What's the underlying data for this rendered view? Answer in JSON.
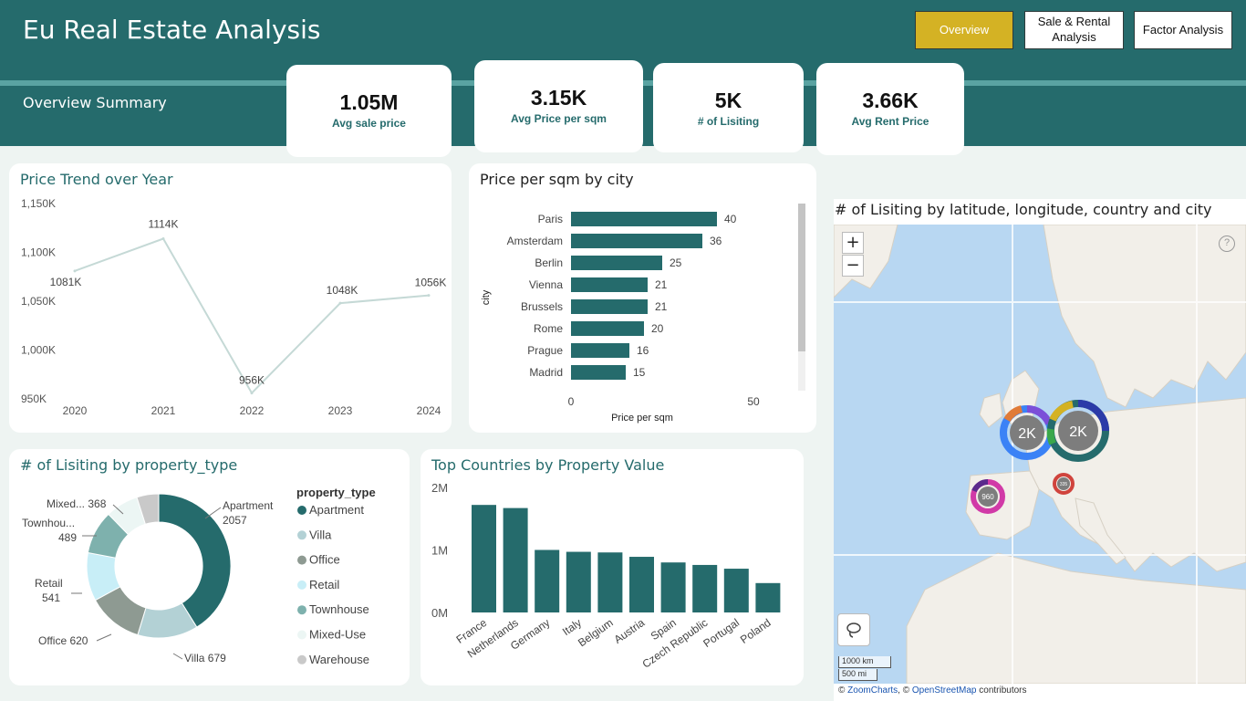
{
  "app": {
    "title": "Eu Real Estate Analysis",
    "subtitle": "Overview Summary"
  },
  "nav": {
    "overview": "Overview",
    "sale_rental_line1": "Sale & Rental",
    "sale_rental_line2": "Analysis",
    "factor": "Factor Analysis"
  },
  "kpis": [
    {
      "value": "1.05M",
      "label": "Avg sale price"
    },
    {
      "value": "3.15K",
      "label": "Avg Price per sqm"
    },
    {
      "value": "5K",
      "label": "# of Lisiting"
    },
    {
      "value": "3.66K",
      "label": "Avg Rent Price"
    }
  ],
  "colors": {
    "header": "#256b6c",
    "accent": "#d4b224",
    "bar": "#256b6c",
    "line": "#c5d9d6"
  },
  "chart_data": [
    {
      "id": "price_trend",
      "type": "line",
      "title": "Price Trend over Year",
      "x": [
        "2020",
        "2021",
        "2022",
        "2023",
        "2024"
      ],
      "values": [
        1081,
        1114,
        956,
        1048,
        1056
      ],
      "data_labels": [
        "1081K",
        "1114K",
        "956K",
        "1048K",
        "1056K"
      ],
      "y_ticks": [
        "1,150K",
        "1,100K",
        "1,050K",
        "1,000K",
        "950K"
      ],
      "ylim": [
        950,
        1150
      ]
    },
    {
      "id": "price_sqm_city",
      "type": "bar",
      "orientation": "horizontal",
      "title": "Price per sqm by city",
      "categories": [
        "Paris",
        "Amsterdam",
        "Berlin",
        "Vienna",
        "Brussels",
        "Rome",
        "Prague",
        "Madrid"
      ],
      "values": [
        40,
        36,
        25,
        21,
        21,
        20,
        16,
        15
      ],
      "xlabel": "Price per sqm",
      "ylabel": "city",
      "x_ticks": [
        "0",
        "50"
      ],
      "xlim": [
        0,
        50
      ]
    },
    {
      "id": "listing_property_type",
      "type": "pie",
      "variant": "donut",
      "title": "# of Lisiting by property_type",
      "legend_title": "property_type",
      "categories": [
        "Apartment",
        "Villa",
        "Office",
        "Retail",
        "Townhouse",
        "Mixed-Use",
        "Warehouse"
      ],
      "values": [
        2057,
        679,
        620,
        541,
        489,
        368,
        246
      ],
      "slice_labels": [
        {
          "name": "Apartment",
          "value": "2057"
        },
        {
          "name": "Villa",
          "value": "679"
        },
        {
          "name": "Office",
          "value": "620"
        },
        {
          "name": "Retail",
          "value": "541"
        },
        {
          "name": "Townhou...",
          "value": "489"
        },
        {
          "name": "Mixed...",
          "value": "368"
        }
      ],
      "colors": [
        "#256b6c",
        "#b3d1d5",
        "#8e9a92",
        "#c8eef7",
        "#7eb1ad",
        "#ecf6f4",
        "#c9c9c9"
      ]
    },
    {
      "id": "top_countries",
      "type": "bar",
      "title": "Top Countries by Property Value",
      "categories": [
        "France",
        "Netherlands",
        "Germany",
        "Italy",
        "Belgium",
        "Austria",
        "Spain",
        "Czech Republic",
        "Portugal",
        "Poland"
      ],
      "values": [
        1.72,
        1.67,
        1.0,
        0.97,
        0.96,
        0.89,
        0.8,
        0.76,
        0.7,
        0.47
      ],
      "y_ticks": [
        "2M",
        "1M",
        "0M"
      ],
      "ylim": [
        0,
        2
      ]
    }
  ],
  "map": {
    "title": "# of Lisiting by latitude, longitude, country and city",
    "zoom_in": "+",
    "zoom_out": "−",
    "help": "?",
    "clusters": [
      {
        "label": "2K"
      },
      {
        "label": "2K"
      },
      {
        "label": "960"
      },
      {
        "label": "335"
      }
    ],
    "scale_km": "1000 km",
    "scale_mi": "500 mi",
    "attribution_prefix": "© ",
    "attribution_zoom": "ZoomCharts",
    "attribution_mid": ", © ",
    "attribution_osm": "OpenStreetMap",
    "attribution_suffix": " contributors"
  }
}
